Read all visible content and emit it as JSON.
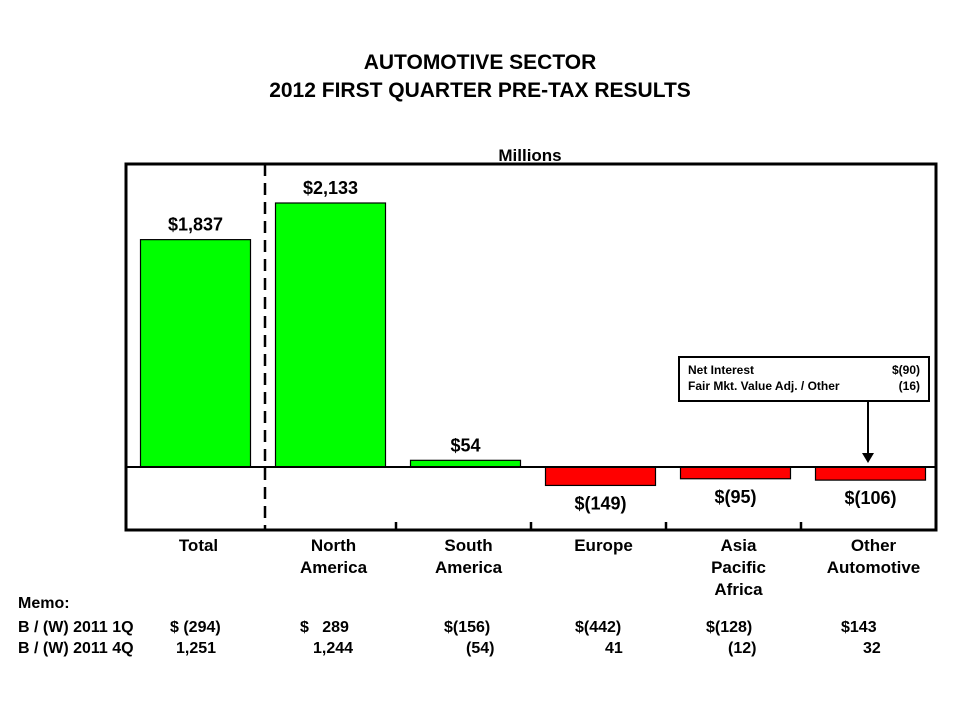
{
  "header": {
    "title_line1": "AUTOMOTIVE SECTOR",
    "title_line2": "2012 FIRST QUARTER PRE-TAX RESULTS",
    "units": "Millions"
  },
  "chart_data": {
    "type": "bar",
    "categories": [
      "Total",
      "North America",
      "South America",
      "Europe",
      "Asia Pacific Africa",
      "Other Automotive"
    ],
    "category_lines": [
      [
        "Total"
      ],
      [
        "North",
        "America"
      ],
      [
        "South",
        "America"
      ],
      [
        "Europe"
      ],
      [
        "Asia",
        "Pacific",
        "Africa"
      ],
      [
        "Other",
        "Automotive"
      ]
    ],
    "values": [
      1837,
      2133,
      54,
      -149,
      -95,
      -106
    ],
    "value_labels": [
      "$1,837",
      "$2,133",
      "$54",
      "$(149)",
      "$(95)",
      "$(106)"
    ],
    "ylabel": "Millions",
    "positive_color": "#00ff00",
    "negative_color": "#ff0000",
    "grid": false,
    "legend": "none"
  },
  "callout": {
    "rows": [
      {
        "label": "Net Interest",
        "value": "$(90)"
      },
      {
        "label": "Fair Mkt. Value Adj. / Other",
        "value": "(16)"
      }
    ]
  },
  "memo": {
    "title": "Memo:",
    "rows": [
      {
        "label": "B / (W) 2011 1Q",
        "values": [
          "$ (294)",
          "$   289",
          "$(156)",
          "$(442)",
          "$(128)",
          "$143"
        ]
      },
      {
        "label": "B / (W) 2011 4Q",
        "values": [
          "1,251",
          "1,244",
          "(54)",
          "41",
          "(12)",
          "32"
        ]
      }
    ]
  }
}
